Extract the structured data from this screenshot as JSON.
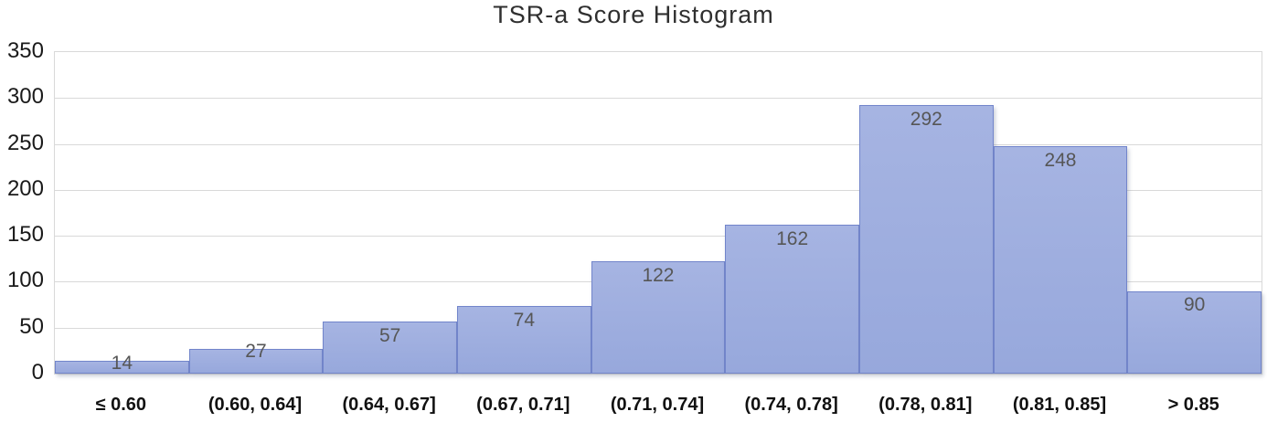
{
  "chart_data": {
    "type": "bar",
    "title": "TSR-a Score Histogram",
    "categories": [
      "≤ 0.60",
      "(0.60, 0.64]",
      "(0.64, 0.67]",
      "(0.67, 0.71]",
      "(0.71, 0.74]",
      "(0.74, 0.78]",
      "(0.78, 0.81]",
      "(0.81, 0.85]",
      "> 0.85"
    ],
    "values": [
      14,
      27,
      57,
      74,
      122,
      162,
      292,
      248,
      90
    ],
    "xlabel": "",
    "ylabel": "",
    "ylim": [
      0,
      350
    ],
    "yticks": [
      0,
      50,
      100,
      150,
      200,
      250,
      300,
      350
    ],
    "grid": true,
    "legend": false,
    "data_labels": true,
    "colors": {
      "bar_fill": "#99A9DD",
      "bar_border": "#7285CB",
      "gridline": "#D9D9D9",
      "data_label_text": "#565656",
      "axis_text": "#1A1A1A",
      "title_text": "#2F2F2F"
    }
  }
}
